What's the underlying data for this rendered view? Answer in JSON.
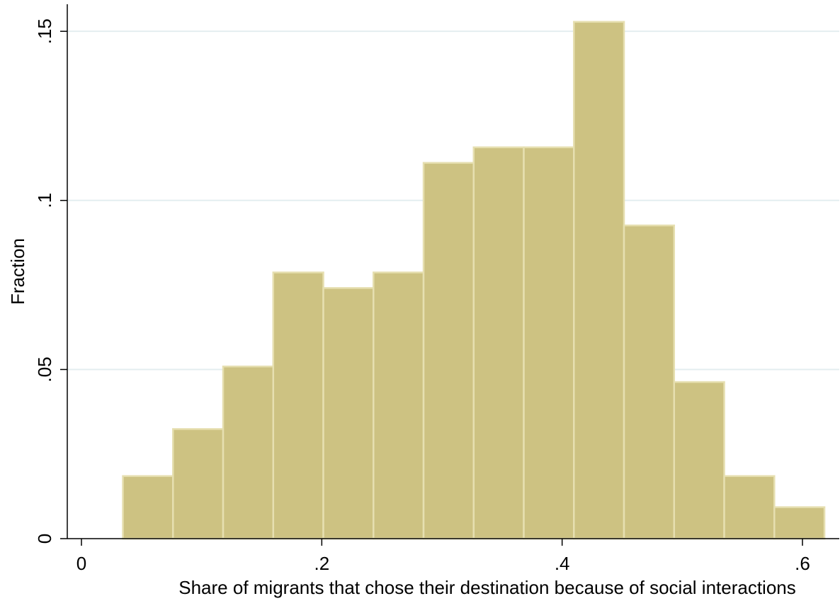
{
  "chart_data": {
    "type": "bar",
    "title": "",
    "xlabel": "Share of migrants that chose their destination because of social interactions",
    "ylabel": "Fraction",
    "xlim": [
      -0.02,
      0.62
    ],
    "ylim": [
      0,
      0.158
    ],
    "x_ticks": [
      {
        "value": 0,
        "label": "0"
      },
      {
        "value": 0.2,
        "label": ".2"
      },
      {
        "value": 0.4,
        "label": ".4"
      },
      {
        "value": 0.6,
        "label": ".6"
      }
    ],
    "y_ticks": [
      {
        "value": 0,
        "label": "0"
      },
      {
        "value": 0.05,
        "label": ".05"
      },
      {
        "value": 0.1,
        "label": ".1"
      },
      {
        "value": 0.15,
        "label": ".15"
      }
    ],
    "grid": "horizontal",
    "bins": [
      {
        "x0": 0.0345,
        "x1": 0.0762,
        "value": 0.0185
      },
      {
        "x0": 0.0762,
        "x1": 0.1179,
        "value": 0.0324
      },
      {
        "x0": 0.1179,
        "x1": 0.1596,
        "value": 0.0509
      },
      {
        "x0": 0.1596,
        "x1": 0.2013,
        "value": 0.0787
      },
      {
        "x0": 0.2013,
        "x1": 0.243,
        "value": 0.0741
      },
      {
        "x0": 0.243,
        "x1": 0.2847,
        "value": 0.0787
      },
      {
        "x0": 0.2847,
        "x1": 0.3264,
        "value": 0.1111
      },
      {
        "x0": 0.3264,
        "x1": 0.3681,
        "value": 0.1157
      },
      {
        "x0": 0.3681,
        "x1": 0.4098,
        "value": 0.1157
      },
      {
        "x0": 0.4098,
        "x1": 0.4515,
        "value": 0.1528
      },
      {
        "x0": 0.4515,
        "x1": 0.4932,
        "value": 0.0926
      },
      {
        "x0": 0.4932,
        "x1": 0.5349,
        "value": 0.0463
      },
      {
        "x0": 0.5349,
        "x1": 0.5766,
        "value": 0.0185
      },
      {
        "x0": 0.5766,
        "x1": 0.6183,
        "value": 0.0093
      }
    ],
    "colors": {
      "bar_fill": "#cdc282",
      "bar_edge": "#e6dfb0",
      "grid": "#e4eef0",
      "axis": "#000000"
    }
  }
}
